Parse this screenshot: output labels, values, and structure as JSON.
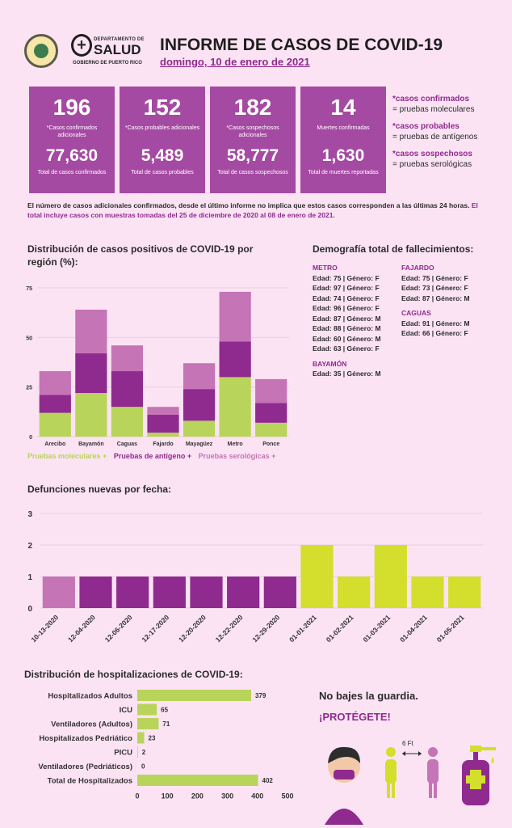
{
  "header": {
    "title": "INFORME DE CASOS DE COVID-19",
    "date": "domingo, 10 de enero de 2021",
    "logo_dept_line": "DEPARTAMENTO DE",
    "logo_name": "SALUD",
    "logo_gov": "GOBIERNO DE PUERTO RICO"
  },
  "cards": [
    {
      "n1": "196",
      "l1": "*Casos confirmados adicionales",
      "n2": "77,630",
      "l2": "Total de casos confirmados"
    },
    {
      "n1": "152",
      "l1": "*Casos probables adicionales",
      "n2": "5,489",
      "l2": "Total de casos probables"
    },
    {
      "n1": "182",
      "l1": "*Casos sospechosos adicionales",
      "n2": "58,777",
      "l2": "Total de casos sospechosos"
    },
    {
      "n1": "14",
      "l1": "Muertes confirmadas",
      "n2": "1,630",
      "l2": "Total de muertes reportadas"
    }
  ],
  "definitions": [
    {
      "term": "*casos confirmados",
      "desc": "= pruebas moleculares"
    },
    {
      "term": "*casos probables",
      "desc": "= pruebas de antígenos"
    },
    {
      "term": "*casos sospechosos",
      "desc": "= pruebas serológicas"
    }
  ],
  "note": {
    "plain": "El número de casos adicionales confirmados, desde el último informe no implica que estos casos corresponden a las últimas 24 horas.",
    "highlight": "El total incluye casos con muestras tomadas del 25 de diciembre de 2020 al 08 de enero de 2021."
  },
  "region_section": {
    "title": "Distribución de casos positivos de COVID-19 por región (%):",
    "legend": [
      "Pruebas moleculares +",
      "Pruebas de antígeno +",
      "Pruebas serológicas +"
    ]
  },
  "demography": {
    "title": "Demografía total de fallecimientos:",
    "col1": [
      {
        "region": "METRO",
        "items": [
          "Edad: 75 | Género: F",
          "Edad: 97 | Género: F",
          "Edad: 74 | Género: F",
          "Edad: 96 | Género: F",
          "Edad: 87 | Género: M",
          "Edad: 88 | Género: M",
          "Edad: 60 | Género: M",
          "Edad: 63 | Género: F"
        ]
      },
      {
        "region": "BAYAMÓN",
        "items": [
          "Edad: 35 | Género: M"
        ]
      }
    ],
    "col2": [
      {
        "region": "FAJARDO",
        "items": [
          "Edad: 75 | Género: F",
          "Edad: 73 | Género: F",
          "Edad: 87 | Género: M"
        ]
      },
      {
        "region": "CAGUAS",
        "items": [
          "Edad: 91 | Género: M",
          "Edad: 66 | Género: F"
        ]
      }
    ]
  },
  "deaths_section": {
    "title": "Defunciones nuevas por fecha:"
  },
  "hosp_section": {
    "title": "Distribución de hospitalizaciones de COVID-19:"
  },
  "footer": {
    "tagline": "No bajes la guardia.",
    "tagline2": "¡PROTÉGETE!",
    "distance": "6 Ft"
  },
  "colors": {
    "molecular": "#b9d45a",
    "antigen": "#8f2a8f",
    "serologic": "#c574b6",
    "death_purple": "#8f2a8f",
    "death_first": "#c574b6",
    "death_yellow": "#d3df2c",
    "hosp_bar": "#b9d45a"
  },
  "chart_data": [
    {
      "type": "bar",
      "stacked": true,
      "title": "Distribución de casos positivos de COVID-19 por región (%):",
      "categories": [
        "Arecibo",
        "Bayamón",
        "Caguas",
        "Fajardo",
        "Mayagüez",
        "Metro",
        "Ponce"
      ],
      "series": [
        {
          "name": "Pruebas moleculares +",
          "values": [
            12,
            22,
            15,
            2,
            8,
            30,
            7
          ]
        },
        {
          "name": "Pruebas de antígeno +",
          "values": [
            9,
            20,
            18,
            9,
            16,
            18,
            10
          ]
        },
        {
          "name": "Pruebas serológicas +",
          "values": [
            12,
            22,
            13,
            4,
            13,
            25,
            12
          ]
        }
      ],
      "yticks": [
        0,
        25,
        50,
        75
      ],
      "ylim": [
        0,
        75
      ]
    },
    {
      "type": "bar",
      "title": "Defunciones nuevas por fecha:",
      "categories": [
        "10-13-2020",
        "12-04-2020",
        "12-06-2020",
        "12-17-2020",
        "12-20-2020",
        "12-22-2020",
        "12-29-2020",
        "01-01-2021",
        "01-02-2021",
        "01-03-2021",
        "01-04-2021",
        "01-05-2021"
      ],
      "values": [
        1,
        1,
        1,
        1,
        1,
        1,
        1,
        2,
        1,
        2,
        1,
        1
      ],
      "yticks": [
        0,
        1,
        2,
        3
      ],
      "ylim": [
        0,
        3
      ]
    },
    {
      "type": "bar",
      "orientation": "horizontal",
      "title": "Distribución de hospitalizaciones de COVID-19:",
      "categories": [
        "Hospitalizados Adultos",
        "ICU",
        "Ventiladores (Adultos)",
        "Hospitalizados Pedriático",
        "PICU",
        "Ventiladores (Pedriáticos)",
        "Total de Hospitalizados"
      ],
      "values": [
        379,
        65,
        71,
        23,
        2,
        0,
        402
      ],
      "xticks": [
        0,
        100,
        200,
        300,
        400,
        500
      ],
      "xlim": [
        0,
        500
      ]
    }
  ]
}
